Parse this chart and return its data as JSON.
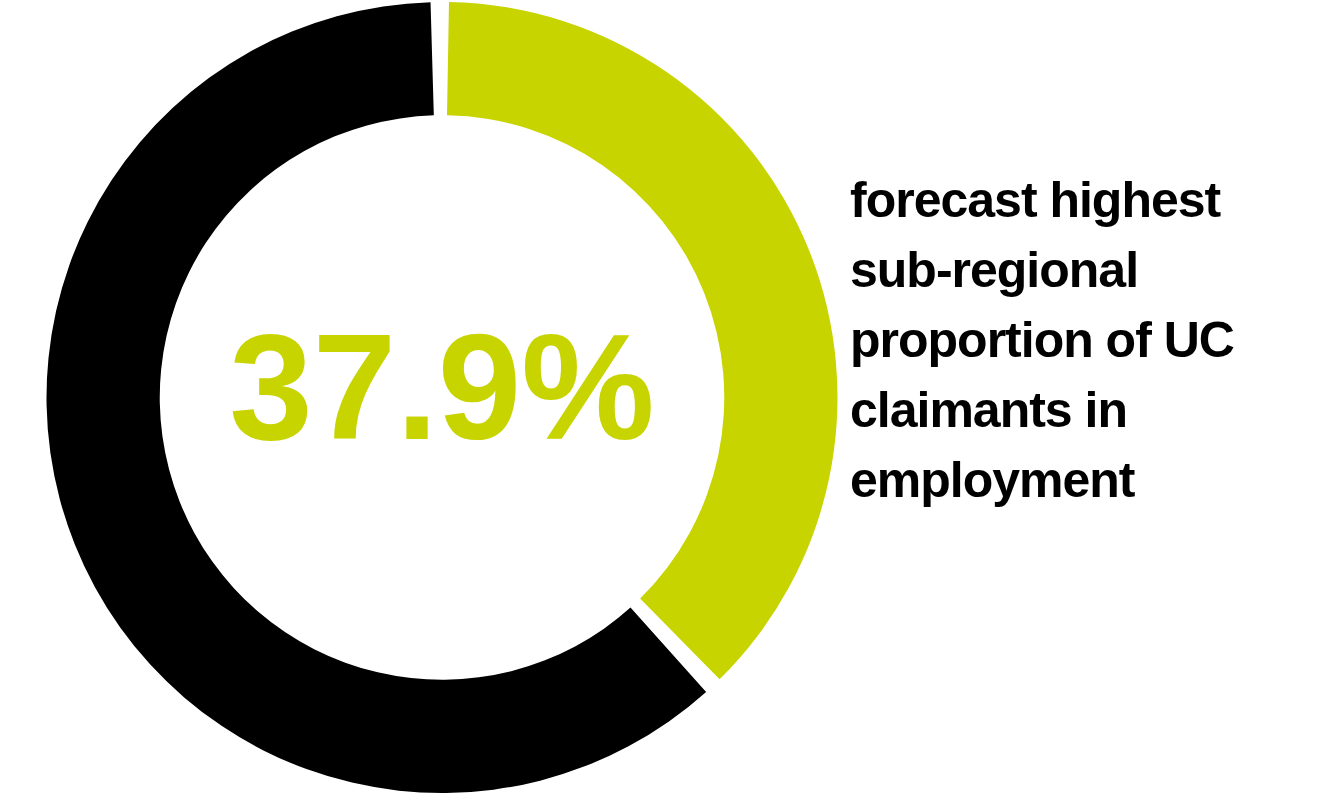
{
  "chart_data": {
    "type": "donut",
    "title": "forecast highest sub-regional proportion of UC claimants in employment",
    "categories": [
      null,
      null
    ],
    "values": [
      37.9,
      62.1
    ],
    "colors": [
      "#c8d400",
      "#000000"
    ],
    "value_labels": [
      "37.9%",
      null
    ],
    "legend": false
  }
}
